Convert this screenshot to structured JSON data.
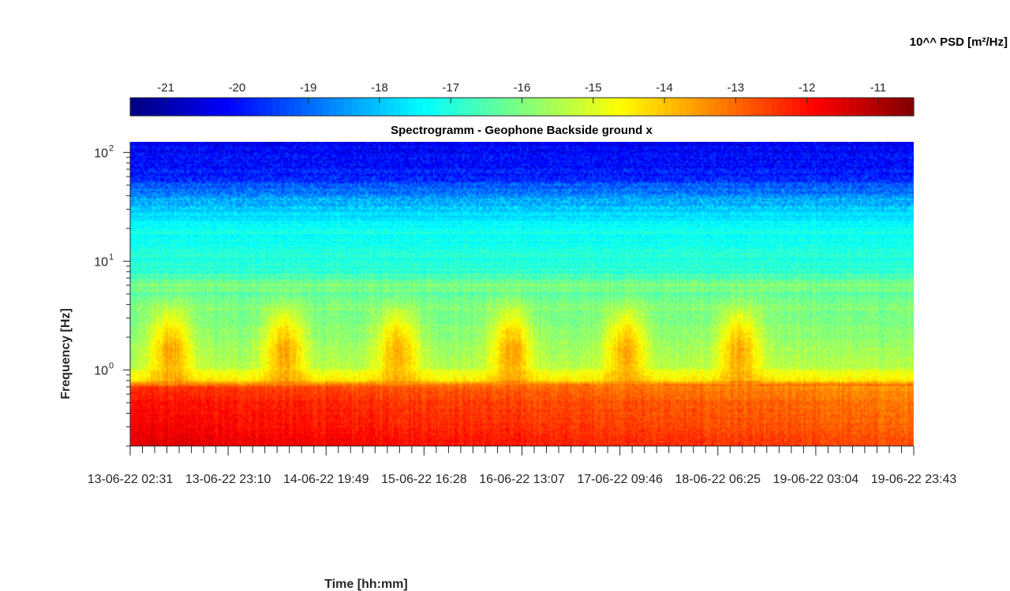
{
  "chart_data": {
    "type": "heatmap",
    "title": "Spectrogramm - Geophone Backside ground x",
    "xlabel": "Time [hh:mm]",
    "ylabel": "Frequency [Hz]",
    "x_tick_labels": [
      "13-06-22 02:31",
      "13-06-22 23:10",
      "14-06-22 19:49",
      "15-06-22 16:28",
      "16-06-22 13:07",
      "17-06-22 09:46",
      "18-06-22 06:25",
      "19-06-22 03:04",
      "19-06-22 23:43"
    ],
    "y_scale": "log",
    "y_ticks": [
      {
        "label": "10",
        "exponent": "0"
      },
      {
        "label": "10",
        "exponent": "1"
      },
      {
        "label": "10",
        "exponent": "2"
      }
    ],
    "ylim_hz": [
      0.2,
      125
    ],
    "colorbar": {
      "title": "10^^ PSD [m²/Hz]",
      "ticks": [
        "-21",
        "-20",
        "-19",
        "-18",
        "-17",
        "-16",
        "-15",
        "-14",
        "-13",
        "-12",
        "-11"
      ],
      "range": [
        -21.5,
        -10.5
      ],
      "colormap": "jet"
    },
    "psd_profile_by_frequency_hz": [
      {
        "f": 0.2,
        "psd": -11.5
      },
      {
        "f": 0.3,
        "psd": -11.8
      },
      {
        "f": 0.5,
        "psd": -12.0
      },
      {
        "f": 0.68,
        "psd": -12.3
      },
      {
        "f": 0.8,
        "psd": -14.5
      },
      {
        "f": 1.0,
        "psd": -15.0
      },
      {
        "f": 2.0,
        "psd": -15.5
      },
      {
        "f": 3.5,
        "psd": -15.8
      },
      {
        "f": 5.0,
        "psd": -16.4
      },
      {
        "f": 6.0,
        "psd": -16.0
      },
      {
        "f": 8.0,
        "psd": -16.9
      },
      {
        "f": 20.0,
        "psd": -17.2
      },
      {
        "f": 40.0,
        "psd": -18.5
      },
      {
        "f": 60.0,
        "psd": -19.8
      },
      {
        "f": 125.0,
        "psd": -20.3
      }
    ],
    "activity_bursts_days_from_start": [
      0.35,
      1.35,
      2.35,
      3.35,
      4.35,
      5.35
    ],
    "colors": {
      "low": "#00008f",
      "mid": "#80ff80",
      "high": "#800000"
    }
  }
}
